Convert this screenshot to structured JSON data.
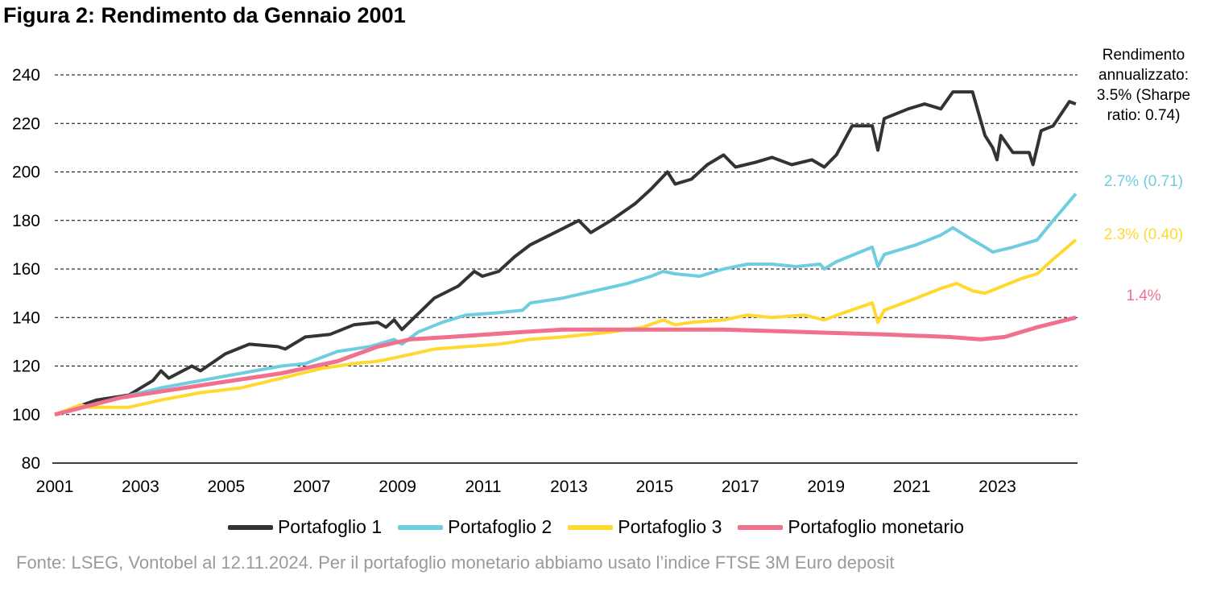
{
  "title": "Figura 2: Rendimento da Gennaio 2001",
  "footnote": "Fonte: LSEG, Vontobel al 12.11.2024. Per il portafoglio monetario abbiamo usato l’indice FTSE 3M Euro deposit",
  "chart_data": {
    "type": "line",
    "title": "Figura 2: Rendimento da Gennaio 2001",
    "xlabel": "",
    "ylabel": "",
    "xlim": [
      2001,
      2024.87
    ],
    "ylim": [
      80,
      240
    ],
    "x_ticks": [
      "2001",
      "2003",
      "2005",
      "2007",
      "2009",
      "2011",
      "2013",
      "2015",
      "2017",
      "2019",
      "2021",
      "2023"
    ],
    "y_ticks": [
      80,
      100,
      120,
      140,
      160,
      180,
      200,
      220,
      240
    ],
    "grid": "horizontal dashed",
    "legend_position": "bottom",
    "series": [
      {
        "name": "Portafoglio 1",
        "color": "#333333",
        "annotation": "Rendimento annualizzato: 3.5% (Sharpe ratio: 0.74)",
        "points": [
          [
            2001.0,
            100
          ],
          [
            2001.98,
            106
          ],
          [
            2002.73,
            108
          ],
          [
            2003.29,
            114
          ],
          [
            2003.48,
            118
          ],
          [
            2003.66,
            115
          ],
          [
            2004.2,
            120
          ],
          [
            2004.4,
            118
          ],
          [
            2004.98,
            125
          ],
          [
            2005.54,
            129
          ],
          [
            2006.2,
            128
          ],
          [
            2006.38,
            127
          ],
          [
            2006.85,
            132
          ],
          [
            2007.42,
            133
          ],
          [
            2007.98,
            137
          ],
          [
            2008.54,
            138
          ],
          [
            2008.73,
            136
          ],
          [
            2008.92,
            139
          ],
          [
            2009.1,
            135
          ],
          [
            2009.39,
            140
          ],
          [
            2009.86,
            148
          ],
          [
            2010.42,
            153
          ],
          [
            2010.79,
            159
          ],
          [
            2010.98,
            157
          ],
          [
            2011.36,
            159
          ],
          [
            2011.73,
            165
          ],
          [
            2012.1,
            170
          ],
          [
            2012.67,
            175
          ],
          [
            2013.23,
            180
          ],
          [
            2013.51,
            175
          ],
          [
            2013.98,
            180
          ],
          [
            2014.55,
            187
          ],
          [
            2014.92,
            193
          ],
          [
            2015.3,
            200
          ],
          [
            2015.48,
            195
          ],
          [
            2015.86,
            197
          ],
          [
            2016.23,
            203
          ],
          [
            2016.61,
            207
          ],
          [
            2016.89,
            202
          ],
          [
            2017.36,
            204
          ],
          [
            2017.74,
            206
          ],
          [
            2018.2,
            203
          ],
          [
            2018.67,
            205
          ],
          [
            2018.96,
            202
          ],
          [
            2019.24,
            207
          ],
          [
            2019.61,
            219
          ],
          [
            2020.08,
            219
          ],
          [
            2020.21,
            209
          ],
          [
            2020.36,
            222
          ],
          [
            2020.92,
            226
          ],
          [
            2021.3,
            228
          ],
          [
            2021.68,
            226
          ],
          [
            2021.96,
            233
          ],
          [
            2022.42,
            233
          ],
          [
            2022.71,
            215
          ],
          [
            2022.89,
            210
          ],
          [
            2022.99,
            205
          ],
          [
            2023.08,
            215
          ],
          [
            2023.36,
            208
          ],
          [
            2023.74,
            208
          ],
          [
            2023.83,
            203
          ],
          [
            2024.02,
            217
          ],
          [
            2024.3,
            219
          ],
          [
            2024.68,
            229
          ],
          [
            2024.83,
            228
          ]
        ]
      },
      {
        "name": "Portafoglio 2",
        "color": "#6fcde0",
        "annotation": "2.7% (0.71)",
        "points": [
          [
            2001.0,
            100
          ],
          [
            2002.54,
            107
          ],
          [
            2003.48,
            111
          ],
          [
            2004.4,
            114
          ],
          [
            2005.35,
            117
          ],
          [
            2006.29,
            120
          ],
          [
            2006.85,
            121
          ],
          [
            2007.6,
            126
          ],
          [
            2008.35,
            128
          ],
          [
            2008.92,
            131
          ],
          [
            2009.1,
            129
          ],
          [
            2009.48,
            134
          ],
          [
            2010.04,
            138
          ],
          [
            2010.6,
            141
          ],
          [
            2011.36,
            142
          ],
          [
            2011.92,
            143
          ],
          [
            2012.1,
            146
          ],
          [
            2012.86,
            148
          ],
          [
            2013.61,
            151
          ],
          [
            2014.36,
            154
          ],
          [
            2014.92,
            157
          ],
          [
            2015.2,
            159
          ],
          [
            2015.48,
            158
          ],
          [
            2016.05,
            157
          ],
          [
            2016.61,
            160
          ],
          [
            2017.17,
            162
          ],
          [
            2017.74,
            162
          ],
          [
            2018.3,
            161
          ],
          [
            2018.86,
            162
          ],
          [
            2018.96,
            160
          ],
          [
            2019.24,
            163
          ],
          [
            2020.08,
            169
          ],
          [
            2020.21,
            161
          ],
          [
            2020.36,
            166
          ],
          [
            2021.11,
            170
          ],
          [
            2021.68,
            174
          ],
          [
            2021.96,
            177
          ],
          [
            2022.42,
            172
          ],
          [
            2022.71,
            169
          ],
          [
            2022.89,
            167
          ],
          [
            2023.36,
            169
          ],
          [
            2023.93,
            172
          ],
          [
            2024.3,
            180
          ],
          [
            2024.83,
            191
          ]
        ]
      },
      {
        "name": "Portafoglio 3",
        "color": "#ffd92f",
        "annotation": "2.3% (0.40)",
        "points": [
          [
            2001.0,
            100
          ],
          [
            2001.6,
            104
          ],
          [
            2001.79,
            103
          ],
          [
            2002.16,
            103
          ],
          [
            2002.73,
            103
          ],
          [
            2003.48,
            106
          ],
          [
            2004.4,
            109
          ],
          [
            2005.35,
            111
          ],
          [
            2006.29,
            115
          ],
          [
            2007.23,
            119
          ],
          [
            2007.98,
            121
          ],
          [
            2008.54,
            122
          ],
          [
            2009.1,
            124
          ],
          [
            2009.86,
            127
          ],
          [
            2010.6,
            128
          ],
          [
            2011.36,
            129
          ],
          [
            2012.1,
            131
          ],
          [
            2012.86,
            132
          ],
          [
            2013.98,
            134
          ],
          [
            2014.73,
            136
          ],
          [
            2015.2,
            139
          ],
          [
            2015.48,
            137
          ],
          [
            2015.86,
            138
          ],
          [
            2016.61,
            139
          ],
          [
            2017.17,
            141
          ],
          [
            2017.74,
            140
          ],
          [
            2018.49,
            141
          ],
          [
            2018.96,
            139
          ],
          [
            2019.42,
            142
          ],
          [
            2020.08,
            146
          ],
          [
            2020.21,
            138
          ],
          [
            2020.36,
            143
          ],
          [
            2021.11,
            148
          ],
          [
            2021.68,
            152
          ],
          [
            2022.05,
            154
          ],
          [
            2022.42,
            151
          ],
          [
            2022.71,
            150
          ],
          [
            2022.99,
            152
          ],
          [
            2023.55,
            156
          ],
          [
            2023.93,
            158
          ],
          [
            2024.3,
            164
          ],
          [
            2024.83,
            172
          ]
        ]
      },
      {
        "name": "Portafoglio monetario",
        "color": "#f0708e",
        "annotation": "1.4%",
        "points": [
          [
            2001.0,
            100
          ],
          [
            2002.54,
            107
          ],
          [
            2004.4,
            112
          ],
          [
            2006.29,
            117
          ],
          [
            2007.6,
            122
          ],
          [
            2008.54,
            128
          ],
          [
            2009.29,
            131
          ],
          [
            2010.23,
            132
          ],
          [
            2011.92,
            134
          ],
          [
            2012.86,
            135
          ],
          [
            2014.73,
            135
          ],
          [
            2016.61,
            135
          ],
          [
            2018.49,
            134
          ],
          [
            2020.36,
            133
          ],
          [
            2021.86,
            132
          ],
          [
            2022.61,
            131
          ],
          [
            2023.17,
            132
          ],
          [
            2023.93,
            136
          ],
          [
            2024.83,
            140
          ]
        ]
      }
    ]
  }
}
